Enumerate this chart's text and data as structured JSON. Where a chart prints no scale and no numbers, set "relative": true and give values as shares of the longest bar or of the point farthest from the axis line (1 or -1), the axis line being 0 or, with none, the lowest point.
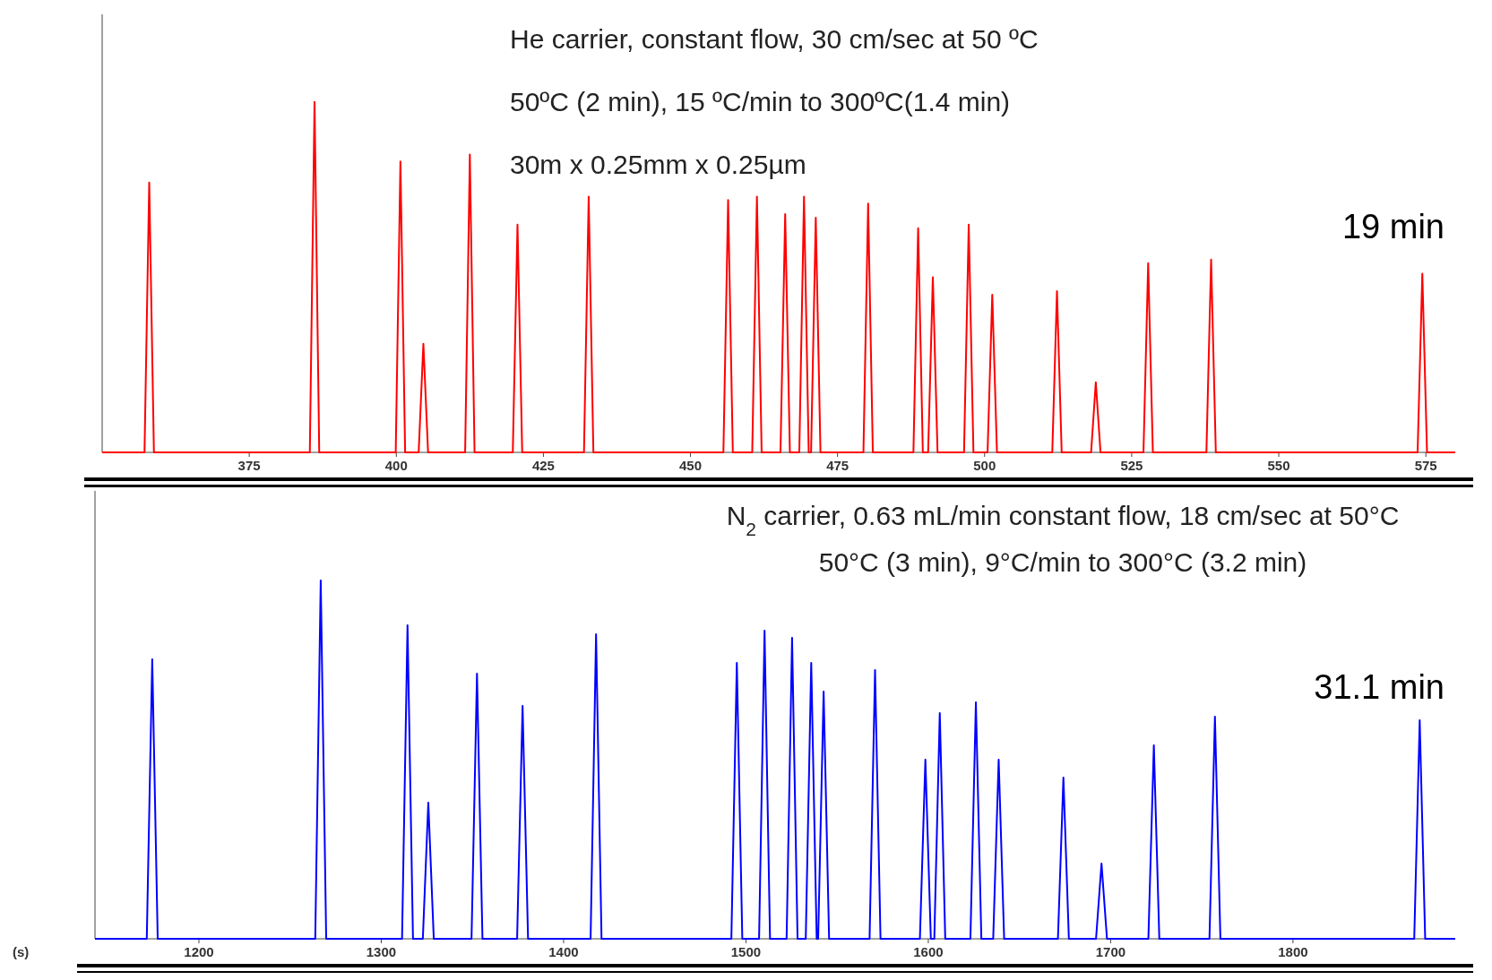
{
  "chart_data": [
    {
      "type": "line",
      "relative": true,
      "xlim": [
        350,
        580
      ],
      "xticks": [
        375,
        400,
        425,
        450,
        475,
        500,
        525,
        550,
        575
      ],
      "x": [
        350,
        357.2,
        358.0,
        358.8,
        385.3,
        386.1,
        386.9,
        399.9,
        400.7,
        401.5,
        403.8,
        404.6,
        405.4,
        411.7,
        412.5,
        413.3,
        419.8,
        420.6,
        421.4,
        431.9,
        432.7,
        433.5,
        455.6,
        456.4,
        457.2,
        460.5,
        461.3,
        462.1,
        465.3,
        466.1,
        466.9,
        468.5,
        469.3,
        470.1,
        470.5,
        471.3,
        472.1,
        479.4,
        480.2,
        481.0,
        487.9,
        488.7,
        489.5,
        490.4,
        491.2,
        492.0,
        496.5,
        497.3,
        498.1,
        500.5,
        501.3,
        502.1,
        511.5,
        512.3,
        513.1,
        518.1,
        518.9,
        519.7,
        527.0,
        527.8,
        528.6,
        537.7,
        538.5,
        539.3,
        573.6,
        574.4,
        575.2,
        580
      ],
      "series": [
        {
          "color": "#ff0000",
          "values": [
            0,
            0,
            0.77,
            0,
            0,
            1,
            0,
            0,
            0.83,
            0,
            0,
            0.31,
            0,
            0,
            0.85,
            0,
            0,
            0.65,
            0,
            0,
            0.73,
            0,
            0,
            0.72,
            0,
            0,
            0.73,
            0,
            0,
            0.68,
            0,
            0,
            0.73,
            0,
            0,
            0.67,
            0,
            0,
            0.71,
            0,
            0,
            0.64,
            0,
            0,
            0.5,
            0,
            0,
            0.65,
            0,
            0,
            0.45,
            0,
            0,
            0.46,
            0,
            0,
            0.2,
            0,
            0,
            0.54,
            0,
            0,
            0.55,
            0,
            0,
            0.51,
            0,
            0
          ]
        }
      ],
      "annotations": [
        "He carrier,  constant flow, 30 cm/sec at 50 ºC",
        "50ºC (2 min), 15 ºC/min to 300ºC(1.4 min)",
        "30m x 0.25mm x 0.25µm",
        "19 min"
      ]
    },
    {
      "type": "line",
      "relative": true,
      "xlim": [
        1143,
        1889
      ],
      "xticks": [
        1200,
        1300,
        1400,
        1500,
        1600,
        1700,
        1800
      ],
      "xlabel": "(s)",
      "x": [
        1143,
        1171.4,
        1174.4,
        1177.4,
        1263.8,
        1266.8,
        1269.8,
        1311.4,
        1314.4,
        1317.4,
        1322.8,
        1325.8,
        1328.8,
        1349.5,
        1352.5,
        1355.5,
        1374.5,
        1377.5,
        1380.5,
        1414.8,
        1417.8,
        1420.8,
        1492,
        1495,
        1498,
        1507.2,
        1510.2,
        1513.2,
        1522.3,
        1525.3,
        1528.3,
        1532.8,
        1535.8,
        1538.8,
        1539.6,
        1542.6,
        1545.6,
        1567.8,
        1570.8,
        1573.8,
        1595.4,
        1598.4,
        1601.4,
        1603.3,
        1606.3,
        1609.3,
        1623.1,
        1626.1,
        1629.1,
        1635.6,
        1638.6,
        1641.6,
        1671.1,
        1674.1,
        1677.1,
        1692,
        1695,
        1698,
        1720.7,
        1723.7,
        1726.7,
        1754.2,
        1757.2,
        1760.2,
        1866.5,
        1869.5,
        1872.5,
        1889
      ],
      "series": [
        {
          "color": "#0000ff",
          "values": [
            0,
            0,
            0.78,
            0,
            0,
            1,
            0,
            0,
            0.875,
            0,
            0,
            0.38,
            0,
            0,
            0.74,
            0,
            0,
            0.65,
            0,
            0,
            0.85,
            0,
            0,
            0.77,
            0,
            0,
            0.86,
            0,
            0,
            0.84,
            0,
            0,
            0.77,
            0,
            0,
            0.69,
            0,
            0,
            0.75,
            0,
            0,
            0.5,
            0,
            0,
            0.63,
            0,
            0,
            0.66,
            0,
            0,
            0.5,
            0,
            0,
            0.45,
            0,
            0,
            0.21,
            0,
            0,
            0.54,
            0,
            0,
            0.62,
            0,
            0,
            0.61,
            0,
            0
          ]
        }
      ],
      "annotations": [
        "N$_{2}$ carrier, 0.63 mL/min constant flow, 18 cm/sec at 50°C",
        "50°C (3 min), 9°C/min to 300°C (3.2 min)",
        "31.1 min"
      ]
    }
  ]
}
